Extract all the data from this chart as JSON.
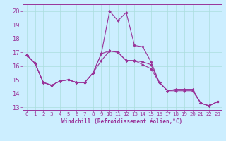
{
  "xlabel": "Windchill (Refroidissement éolien,°C)",
  "bg_color": "#cceeff",
  "line_color": "#993399",
  "grid_color": "#aadddd",
  "xlim": [
    -0.5,
    23.5
  ],
  "ylim": [
    12.8,
    20.5
  ],
  "yticks": [
    13,
    14,
    15,
    16,
    17,
    18,
    19,
    20
  ],
  "xticks": [
    0,
    1,
    2,
    3,
    4,
    5,
    6,
    7,
    8,
    9,
    10,
    11,
    12,
    13,
    14,
    15,
    16,
    17,
    18,
    19,
    20,
    21,
    22,
    23
  ],
  "series1_y": [
    16.8,
    16.2,
    14.8,
    14.6,
    14.9,
    15.0,
    14.8,
    14.8,
    15.5,
    16.9,
    20.0,
    19.3,
    19.9,
    17.5,
    17.4,
    16.3,
    14.8,
    14.2,
    14.3,
    14.3,
    14.3,
    13.3,
    13.1,
    13.4
  ],
  "series2_y": [
    16.8,
    16.2,
    14.8,
    14.6,
    14.9,
    15.0,
    14.8,
    14.8,
    15.5,
    16.9,
    17.1,
    17.0,
    16.4,
    16.4,
    16.3,
    16.1,
    14.8,
    14.2,
    14.3,
    14.3,
    14.3,
    13.3,
    13.1,
    13.4
  ],
  "series3_y": [
    16.8,
    16.2,
    14.8,
    14.6,
    14.9,
    15.0,
    14.8,
    14.8,
    15.5,
    16.4,
    17.1,
    17.0,
    16.4,
    16.4,
    16.1,
    15.8,
    14.8,
    14.2,
    14.2,
    14.2,
    14.2,
    13.3,
    13.1,
    13.4
  ],
  "xticklabel_fontsize": 5.0,
  "yticklabel_fontsize": 6.0,
  "xlabel_fontsize": 5.5
}
